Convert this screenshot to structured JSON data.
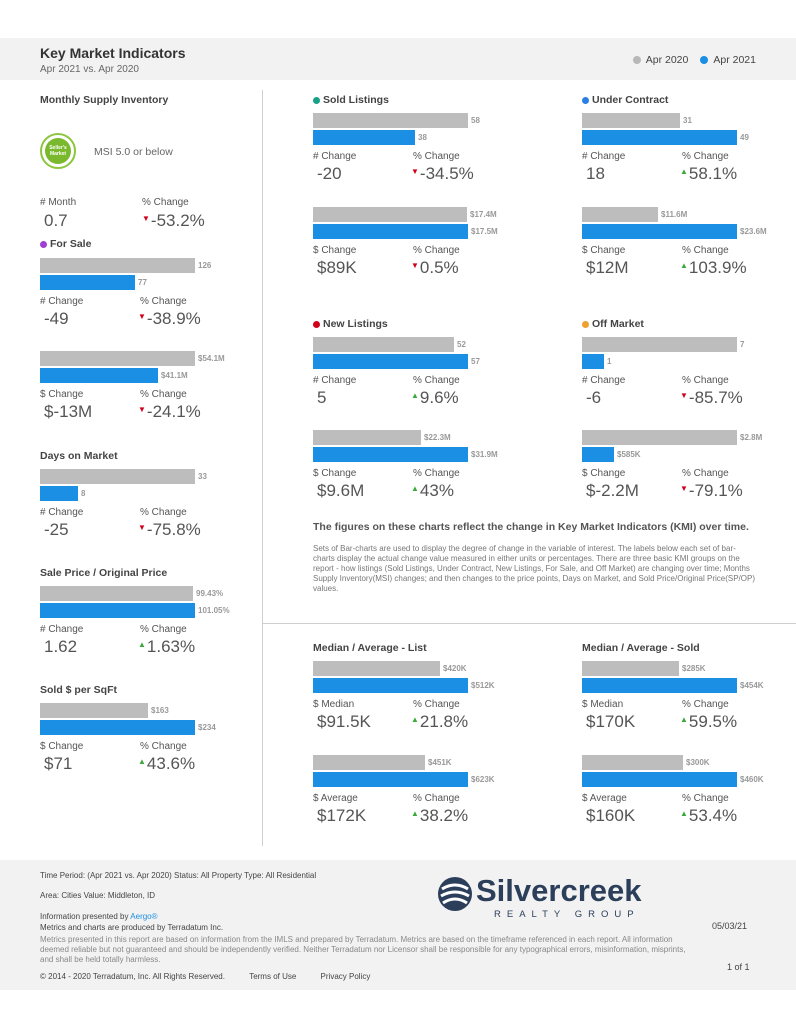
{
  "header": {
    "title": "Key Market Indicators",
    "subtitle": "Apr 2021 vs. Apr 2020",
    "legend": [
      {
        "label": "Apr 2020",
        "color": "#b8b8b8"
      },
      {
        "label": "Apr 2021",
        "color": "#1a8fe3"
      }
    ]
  },
  "msi": {
    "title": "Monthly Supply Inventory",
    "badge_text": "Seller's Market",
    "badge_label": "MSI 5.0 or below",
    "change_label": "# Month",
    "change_value": "0.7",
    "pct_label": "% Change",
    "pct_value": "-53.2%",
    "direction": "down"
  },
  "for_sale": {
    "title": "For Sale",
    "dot_color": "#a040d0",
    "count": {
      "prev": 126,
      "curr": 77,
      "change_label": "# Change",
      "change": "-49",
      "pct_label": "% Change",
      "pct": "-38.9%",
      "direction": "down"
    },
    "dollar": {
      "prev": "$54.1M",
      "curr": "$41.1M",
      "prev_num": 54.1,
      "curr_num": 41.1,
      "change_label": "$ Change",
      "change": "$-13M",
      "pct_label": "% Change",
      "pct": "-24.1%",
      "direction": "down"
    }
  },
  "days_on_market": {
    "title": "Days on Market",
    "prev": 33,
    "curr": 8,
    "change_label": "# Change",
    "change": "-25",
    "pct_label": "% Change",
    "pct": "-75.8%",
    "direction": "down"
  },
  "sale_price_ratio": {
    "title": "Sale Price / Original Price",
    "prev": "99.43%",
    "curr": "101.05%",
    "change_label": "# Change",
    "change": "1.62",
    "pct_label": "% Change",
    "pct": "1.63%",
    "direction": "up"
  },
  "sold_per_sqft": {
    "title": "Sold $ per SqFt",
    "prev": "$163",
    "curr": "$234",
    "prev_num": 163,
    "curr_num": 234,
    "change_label": "$ Change",
    "change": "$71",
    "pct_label": "% Change",
    "pct": "43.6%",
    "direction": "up"
  },
  "sold_listings": {
    "title": "Sold Listings",
    "dot_color": "#1aa088",
    "count": {
      "prev": 58,
      "curr": 38,
      "change_label": "# Change",
      "change": "-20",
      "pct_label": "% Change",
      "pct": "-34.5%",
      "direction": "down"
    },
    "dollar": {
      "prev": "$17.4M",
      "curr": "$17.5M",
      "prev_num": 17.4,
      "curr_num": 17.5,
      "change_label": "$ Change",
      "change": "$89K",
      "pct_label": "% Change",
      "pct": "0.5%",
      "direction": "down"
    }
  },
  "under_contract": {
    "title": "Under Contract",
    "dot_color": "#2a7fe0",
    "count": {
      "prev": 31,
      "curr": 49,
      "change_label": "# Change",
      "change": "18",
      "pct_label": "% Change",
      "pct": "58.1%",
      "direction": "up"
    },
    "dollar": {
      "prev": "$11.6M",
      "curr": "$23.6M",
      "prev_num": 11.6,
      "curr_num": 23.6,
      "change_label": "$ Change",
      "change": "$12M",
      "pct_label": "% Change",
      "pct": "103.9%",
      "direction": "up"
    }
  },
  "new_listings": {
    "title": "New Listings",
    "dot_color": "#d0021b",
    "count": {
      "prev": 52,
      "curr": 57,
      "change_label": "# Change",
      "change": "5",
      "pct_label": "% Change",
      "pct": "9.6%",
      "direction": "up"
    },
    "dollar": {
      "prev": "$22.3M",
      "curr": "$31.9M",
      "prev_num": 22.3,
      "curr_num": 31.9,
      "change_label": "$ Change",
      "change": "$9.6M",
      "pct_label": "% Change",
      "pct": "43%",
      "direction": "up"
    }
  },
  "off_market": {
    "title": "Off Market",
    "dot_color": "#f0a030",
    "count": {
      "prev": 7,
      "curr": 1,
      "change_label": "# Change",
      "change": "-6",
      "pct_label": "% Change",
      "pct": "-85.7%",
      "direction": "down"
    },
    "dollar": {
      "prev": "$2.8M",
      "curr": "$585K",
      "prev_num": 2.8,
      "curr_num": 0.585,
      "change_label": "$ Change",
      "change": "$-2.2M",
      "pct_label": "% Change",
      "pct": "-79.1%",
      "direction": "down"
    }
  },
  "explanation": {
    "title": "The figures on these charts reflect the change in Key Market Indicators (KMI) over time.",
    "body": "Sets of Bar-charts are used to display the degree of change in the variable of interest. The labels below each set of bar-charts display the actual change value measured in either units or percentages. There are three basic KMI groups on the report - how listings (Sold Listings, Under Contract, New Listings, For Sale, and Off Market) are changing over time; Months Supply Inventory(MSI) changes; and then changes to the price points, Days on Market, and Sold Price/Original Price(SP/OP) values."
  },
  "median_list": {
    "title": "Median / Average - List",
    "median": {
      "prev": "$420K",
      "curr": "$512K",
      "prev_num": 420,
      "curr_num": 512,
      "change_label": "$ Median",
      "change": "$91.5K",
      "pct_label": "% Change",
      "pct": "21.8%",
      "direction": "up"
    },
    "average": {
      "prev": "$451K",
      "curr": "$623K",
      "prev_num": 451,
      "curr_num": 623,
      "change_label": "$ Average",
      "change": "$172K",
      "pct_label": "% Change",
      "pct": "38.2%",
      "direction": "up"
    }
  },
  "median_sold": {
    "title": "Median / Average - Sold",
    "median": {
      "prev": "$285K",
      "curr": "$454K",
      "prev_num": 285,
      "curr_num": 454,
      "change_label": "$ Median",
      "change": "$170K",
      "pct_label": "% Change",
      "pct": "59.5%",
      "direction": "up"
    },
    "average": {
      "prev": "$300K",
      "curr": "$460K",
      "prev_num": 300,
      "curr_num": 460,
      "change_label": "$ Average",
      "change": "$160K",
      "pct_label": "% Change",
      "pct": "53.4%",
      "direction": "up"
    }
  },
  "footer": {
    "line1": "Time Period: (Apr 2021 vs. Apr 2020)    Status: All    Property Type: All Residential",
    "line2": "Area: Cities    Value: Middleton, ID",
    "presented": "Information presented by",
    "aergo": "Aergo®",
    "produced": "Metrics and charts are produced by Terradatum Inc.",
    "disclaimer": "Metrics presented in this report are based on information from the IMLS and prepared by Terradatum. Metrics are based on the timeframe referenced in each report. All information deemed reliable but not guaranteed and should be independently verified. Neither Terradatum nor Licensor shall be responsible for any typographical errors, misinformation, misprints, and shall be held totally harmless.",
    "copyright": "© 2014 - 2020 Terradatum, Inc. All Rights Reserved.",
    "terms": "Terms of Use",
    "privacy": "Privacy Policy",
    "date": "05/03/21",
    "page": "1 of 1",
    "logo_text": "Silvercreek",
    "logo_sub": "REALTY GROUP"
  }
}
